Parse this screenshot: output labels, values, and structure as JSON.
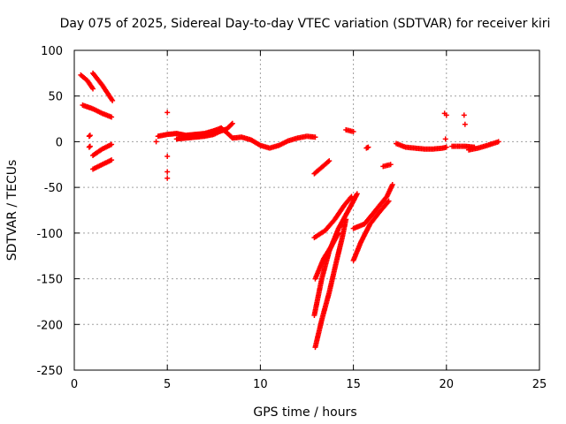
{
  "chart_data": {
    "type": "scatter",
    "title": "Day 075 of 2025, Sidereal Day-to-day VTEC variation (SDTVAR) for receiver kiri",
    "xlabel": "GPS time / hours",
    "ylabel": "SDTVAR / TECUs",
    "xlim": [
      0,
      25
    ],
    "ylim": [
      -250,
      100
    ],
    "xticks": [
      0,
      5,
      10,
      15,
      20,
      25
    ],
    "yticks": [
      -250,
      -200,
      -150,
      -100,
      -50,
      0,
      50,
      100
    ],
    "grid": true,
    "marker": "+",
    "color": "#ff0000",
    "segments": [
      [
        [
          0.35,
          73
        ],
        [
          0.7,
          67
        ],
        [
          1.0,
          58
        ]
      ],
      [
        [
          1.0,
          75
        ],
        [
          1.5,
          62
        ],
        [
          2.05,
          45
        ]
      ],
      [
        [
          0.45,
          40
        ],
        [
          1.0,
          36
        ],
        [
          1.5,
          31
        ],
        [
          2.0,
          27
        ]
      ],
      [
        [
          0.8,
          6
        ],
        [
          0.85,
          7
        ]
      ],
      [
        [
          0.8,
          -6
        ],
        [
          0.85,
          -5
        ]
      ],
      [
        [
          1.0,
          -15
        ],
        [
          1.5,
          -8
        ],
        [
          2.0,
          -3
        ]
      ],
      [
        [
          1.0,
          -30
        ],
        [
          1.5,
          -25
        ],
        [
          2.0,
          -20
        ]
      ],
      [
        [
          4.5,
          6
        ],
        [
          5.0,
          8
        ],
        [
          5.5,
          9
        ],
        [
          6.0,
          7
        ],
        [
          6.5,
          8
        ],
        [
          7.0,
          9
        ],
        [
          7.5,
          12
        ],
        [
          7.9,
          15
        ],
        [
          8.3,
          8
        ],
        [
          8.5,
          4
        ],
        [
          9.0,
          5
        ],
        [
          9.5,
          2
        ],
        [
          10.0,
          -4
        ],
        [
          10.5,
          -7
        ],
        [
          11.0,
          -4
        ],
        [
          11.5,
          1
        ],
        [
          12.0,
          4
        ],
        [
          12.5,
          6
        ],
        [
          12.95,
          5
        ]
      ],
      [
        [
          5.5,
          3
        ],
        [
          6.0,
          4
        ],
        [
          6.5,
          5
        ],
        [
          7.0,
          6
        ],
        [
          7.5,
          8
        ],
        [
          7.8,
          11
        ],
        [
          8.2,
          14
        ],
        [
          8.5,
          20
        ]
      ],
      [
        [
          12.9,
          -35
        ],
        [
          13.3,
          -28
        ],
        [
          13.7,
          -21
        ]
      ],
      [
        [
          12.9,
          -105
        ],
        [
          13.5,
          -97
        ],
        [
          14.0,
          -85
        ],
        [
          14.5,
          -70
        ],
        [
          14.9,
          -60
        ]
      ],
      [
        [
          12.95,
          -150
        ],
        [
          13.4,
          -128
        ],
        [
          13.8,
          -115
        ],
        [
          14.2,
          -100
        ]
      ],
      [
        [
          12.9,
          -190
        ],
        [
          13.3,
          -150
        ],
        [
          13.7,
          -120
        ],
        [
          14.2,
          -95
        ],
        [
          14.6,
          -80
        ],
        [
          15.0,
          -65
        ],
        [
          15.2,
          -57
        ]
      ],
      [
        [
          12.95,
          -225
        ],
        [
          13.3,
          -195
        ],
        [
          13.7,
          -165
        ],
        [
          14.1,
          -130
        ],
        [
          14.4,
          -105
        ],
        [
          14.6,
          -85
        ]
      ],
      [
        [
          14.6,
          13
        ],
        [
          15.0,
          11
        ]
      ],
      [
        [
          15.0,
          -95
        ],
        [
          15.6,
          -90
        ],
        [
          16.2,
          -75
        ],
        [
          16.8,
          -60
        ],
        [
          17.1,
          -47
        ]
      ],
      [
        [
          15.0,
          -130
        ],
        [
          15.4,
          -110
        ],
        [
          15.9,
          -90
        ],
        [
          16.4,
          -77
        ],
        [
          16.9,
          -65
        ]
      ],
      [
        [
          15.7,
          -7
        ],
        [
          15.8,
          -6
        ]
      ],
      [
        [
          16.6,
          -27
        ],
        [
          17.0,
          -25
        ]
      ],
      [
        [
          17.3,
          -2
        ],
        [
          17.8,
          -6
        ],
        [
          18.3,
          -7
        ],
        [
          18.8,
          -8
        ],
        [
          19.3,
          -8
        ],
        [
          19.8,
          -7
        ],
        [
          20.0,
          -6
        ]
      ],
      [
        [
          20.3,
          -5
        ],
        [
          21.0,
          -5
        ],
        [
          21.5,
          -6
        ]
      ],
      [
        [
          21.2,
          -9
        ],
        [
          21.7,
          -7
        ],
        [
          22.2,
          -4
        ],
        [
          22.8,
          0
        ]
      ]
    ],
    "isolated_points": [
      [
        4.4,
        0
      ],
      [
        5.0,
        32
      ],
      [
        5.0,
        -16
      ],
      [
        5.0,
        -33
      ],
      [
        5.0,
        -40
      ],
      [
        19.9,
        31
      ],
      [
        20.0,
        29
      ],
      [
        19.95,
        3
      ],
      [
        20.95,
        29
      ],
      [
        21.0,
        19
      ]
    ]
  }
}
